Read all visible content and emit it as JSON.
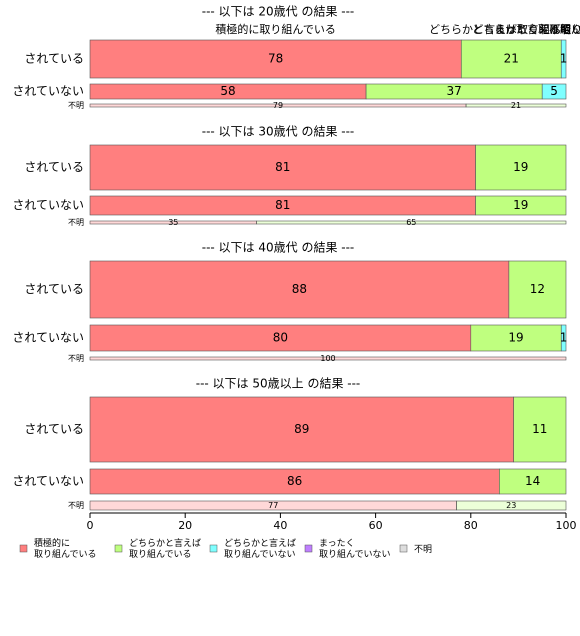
{
  "chart_data": {
    "type": "stacked-barh",
    "series": [
      {
        "name": "積極的に\n取り組んでいる",
        "color": "#ff7f7f"
      },
      {
        "name": "どちらかと言えば\n取り組んでいる",
        "color": "#bfff7f"
      },
      {
        "name": "どちらかと言えば\n取り組んでいない",
        "color": "#7fffff"
      },
      {
        "name": "まったく\n取り組んでいない",
        "color": "#bf7fff"
      },
      {
        "name": "不明",
        "color": "#dddddd"
      }
    ],
    "xlim": [
      0,
      100
    ],
    "xticks": [
      0,
      20,
      40,
      60,
      80,
      100
    ],
    "panels": [
      {
        "title": "--- 以下は 20歳代 の結果 ---",
        "top_labels": [
          "積極的に取り組んでいる",
          "どちらかと言えば取り組んでいる",
          "どちらかと言えば取り組んでいない",
          "まったく取り組んでいない",
          "不明"
        ],
        "rows": [
          {
            "label": "されている",
            "values": [
              78,
              21,
              1,
              0,
              0
            ]
          },
          {
            "label": "されていない",
            "values": [
              58,
              37,
              5,
              0,
              0
            ]
          },
          {
            "label": "不明",
            "values": [
              79,
              21,
              0,
              0,
              0
            ]
          }
        ]
      },
      {
        "title": "--- 以下は 30歳代 の結果 ---",
        "rows": [
          {
            "label": "されている",
            "values": [
              81,
              19,
              0,
              0,
              0
            ]
          },
          {
            "label": "されていない",
            "values": [
              81,
              19,
              0,
              0,
              0
            ]
          },
          {
            "label": "不明",
            "values": [
              35,
              65,
              0,
              0,
              0
            ]
          }
        ]
      },
      {
        "title": "--- 以下は 40歳代 の結果 ---",
        "rows": [
          {
            "label": "されている",
            "values": [
              88,
              12,
              0,
              0,
              0
            ]
          },
          {
            "label": "されていない",
            "values": [
              80,
              19,
              1,
              0,
              0
            ]
          },
          {
            "label": "不明",
            "values": [
              100,
              0,
              0,
              0,
              0
            ]
          }
        ]
      },
      {
        "title": "--- 以下は 50歳以上 の結果 ---",
        "rows": [
          {
            "label": "されている",
            "values": [
              89,
              11,
              0,
              0,
              0
            ]
          },
          {
            "label": "されていない",
            "values": [
              86,
              14,
              0,
              0,
              0
            ]
          },
          {
            "label": "不明",
            "values": [
              77,
              23,
              0,
              0,
              0
            ]
          }
        ]
      }
    ]
  }
}
